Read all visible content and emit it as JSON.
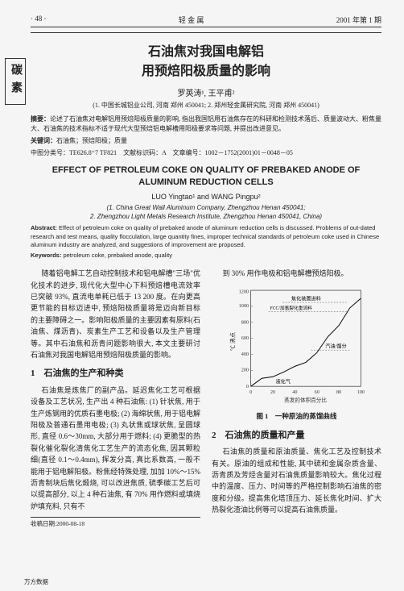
{
  "header": {
    "page": "· 48 ·",
    "journal": "轻 金 属",
    "issue": "2001 年第 1 期"
  },
  "side_label": "碳素",
  "title_cn_l1": "石油焦对我国电解铝",
  "title_cn_l2": "用预焙阳极质量的影响",
  "authors_cn": "罗英涛¹, 王平甫²",
  "affil_cn": "(1. 中国长城铝业公司, 河南 郑州 450041; 2. 郑州轻金属研究院, 河南 郑州 450041)",
  "abstract_cn_label": "摘要：",
  "abstract_cn": "论述了石油焦对电解铝用预焙阳极质量的影响, 指出我国铝用石油焦存在的科研和检测技术落后、质量波动大、粉焦量大、石油焦的技术指标不适于现代大型预焙铝电解槽用阳极要求等问题, 并提出改进意见。",
  "keywords_cn_label": "关键词：",
  "keywords_cn": "石油焦；预焙阳极；质量",
  "classif": "中图分类号：TE626.8⁺7 TF821　文献标识码：A　文章编号：1002－1752(2001)01－0048－05",
  "title_en": "EFFECT OF PETROLEUM COKE ON QUALITY OF PREBAKED ANODE OF ALUMINUM REDUCTION CELLS",
  "authors_en": "LUO Yingtao¹ and WANG Pingpu²",
  "affil_en_l1": "(1. China Great Wall Aluminum Company, Zhengzhou Henan 450041;",
  "affil_en_l2": "2. Zhengzhou Light Metals Research Institute, Zhengzhou Henan 450041, China)",
  "abstract_en_label": "Abstract:",
  "abstract_en": "Effect of petroleum coke on quality of prebaked anode of aluminum reduction cells is discussed. Problems of out-dated research and test means, quality flocculation, large quantity fines, improper technical standards of petroleum coke used in Chinese aluminum industry are analyzed, and suggestions of improvement are proposed.",
  "keywords_en_label": "Keywords:",
  "keywords_en": "petroleum coke, prebaked anode, quality",
  "col1": {
    "p1": "随着铝电解工艺自动控制技术和铝电解槽\"三场\"优化技术的进步, 现代化大型中心下料预焙槽电流效率已突破 93%, 直流电单耗已低于 13 200 度。在向更高更节能的目标迈进中, 预焙阳极质量将是迈向新目标的主要障碍之一。影响阳极质量的主要因素有原料(石油焦、煤沥青)、炭素生产工艺和设备以及生产管理等。其中石油焦和沥青问题影响很大, 本文主要研讨石油焦对我国电解铝用预焙阳极质量的影响。",
    "h1": "1　石油焦的生产和种类",
    "p2": "石油焦是炼焦厂的副产品。延迟焦化工艺可根据设备及工艺状况, 生产出 4 种石油焦: (1) 针状焦, 用于生产炼钢用的优质石墨电极; (2) 海绵状焦, 用于铝电解阳极及普通石墨用电极; (3) 丸状焦或球状焦, 呈圆球形, 直径 0.6～30mm, 大部分用于燃料; (4) 更脆型的热裂化催化裂化清焦化工艺生产的流态化焦, 因其颗粒细(直径 0.1～0.4mm), 挥发分高, 真比系数高, 一般不能用于铝电解阳极。粉焦经特殊处理, 加加 10%～15% 沥青制块后焦化煅烧, 可以改进焦质, 硫季碳工艺后可以提高部分, 以上 4 种石油焦, 有 70% 用作燃料或填烧炉填充料, 只有不",
    "recv": "收稿日期:2000-08-18"
  },
  "col2": {
    "p1": "到 30% 用作电极和铝电解槽预焙阳极。",
    "chart": {
      "type": "line",
      "y_values": [
        0,
        100,
        120,
        180,
        250,
        300,
        420,
        620,
        760,
        980,
        1100
      ],
      "x_values": [
        0,
        10,
        20,
        30,
        40,
        50,
        60,
        70,
        80,
        90,
        100
      ],
      "ylim": [
        0,
        1200
      ],
      "xlim": [
        0,
        100
      ],
      "ytick_step": 200,
      "xtick_step": 20,
      "line_color": "#000000",
      "bg_color": "#f5f5f5",
      "border_color": "#333333",
      "axis_fontsize": 7,
      "labels": {
        "top1": "焦化装置进料",
        "top2": "FCC/加氢裂化重流料",
        "mid": "汽油/馏分",
        "bottom": "液化气"
      },
      "ylabel": "℃ 沸点",
      "xlabel": "蒸发的体积百分比",
      "caption": "图 1　一种原油的蒸馏曲线"
    },
    "h2": "2　石油焦的质量和产量",
    "p2": "石油焦的质量和原油质量、焦化工艺及控制技术有关。原油的组成和性能, 其中硫和金属杂质含量、沥青质及芳烃含量对石油焦质量影响较大。焦化过程中的温度、压力、时间等的严格控制影响石油焦的密度和分级。提高焦化塔顶压力、延长焦化时间、扩大热裂化渣油比例等可以提高石油焦质量。"
  },
  "footnote": "万方数据"
}
